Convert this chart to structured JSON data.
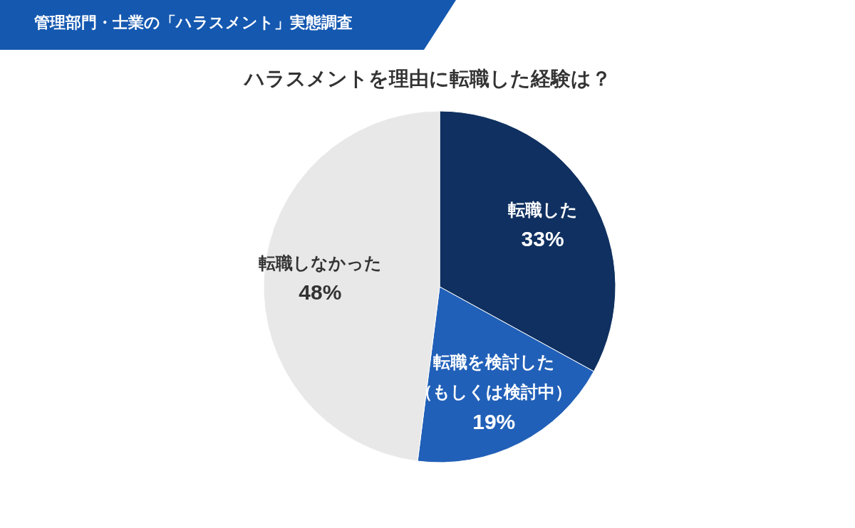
{
  "chart_data": {
    "type": "pie",
    "title": "ハラスメントを理由に転職した経験は？",
    "annotations": [
      "管理部門・士業の「ハラスメント」実態調査"
    ],
    "categories": [
      "転職した",
      "転職を検討した（もしくは検討中）",
      "転職しなかった"
    ],
    "values": [
      33,
      19,
      48
    ],
    "colors": [
      "#0f3060",
      "#2160b8",
      "#e8e8e8"
    ],
    "value_labels": [
      "33%",
      "19%",
      "48%"
    ],
    "legend": false
  }
}
